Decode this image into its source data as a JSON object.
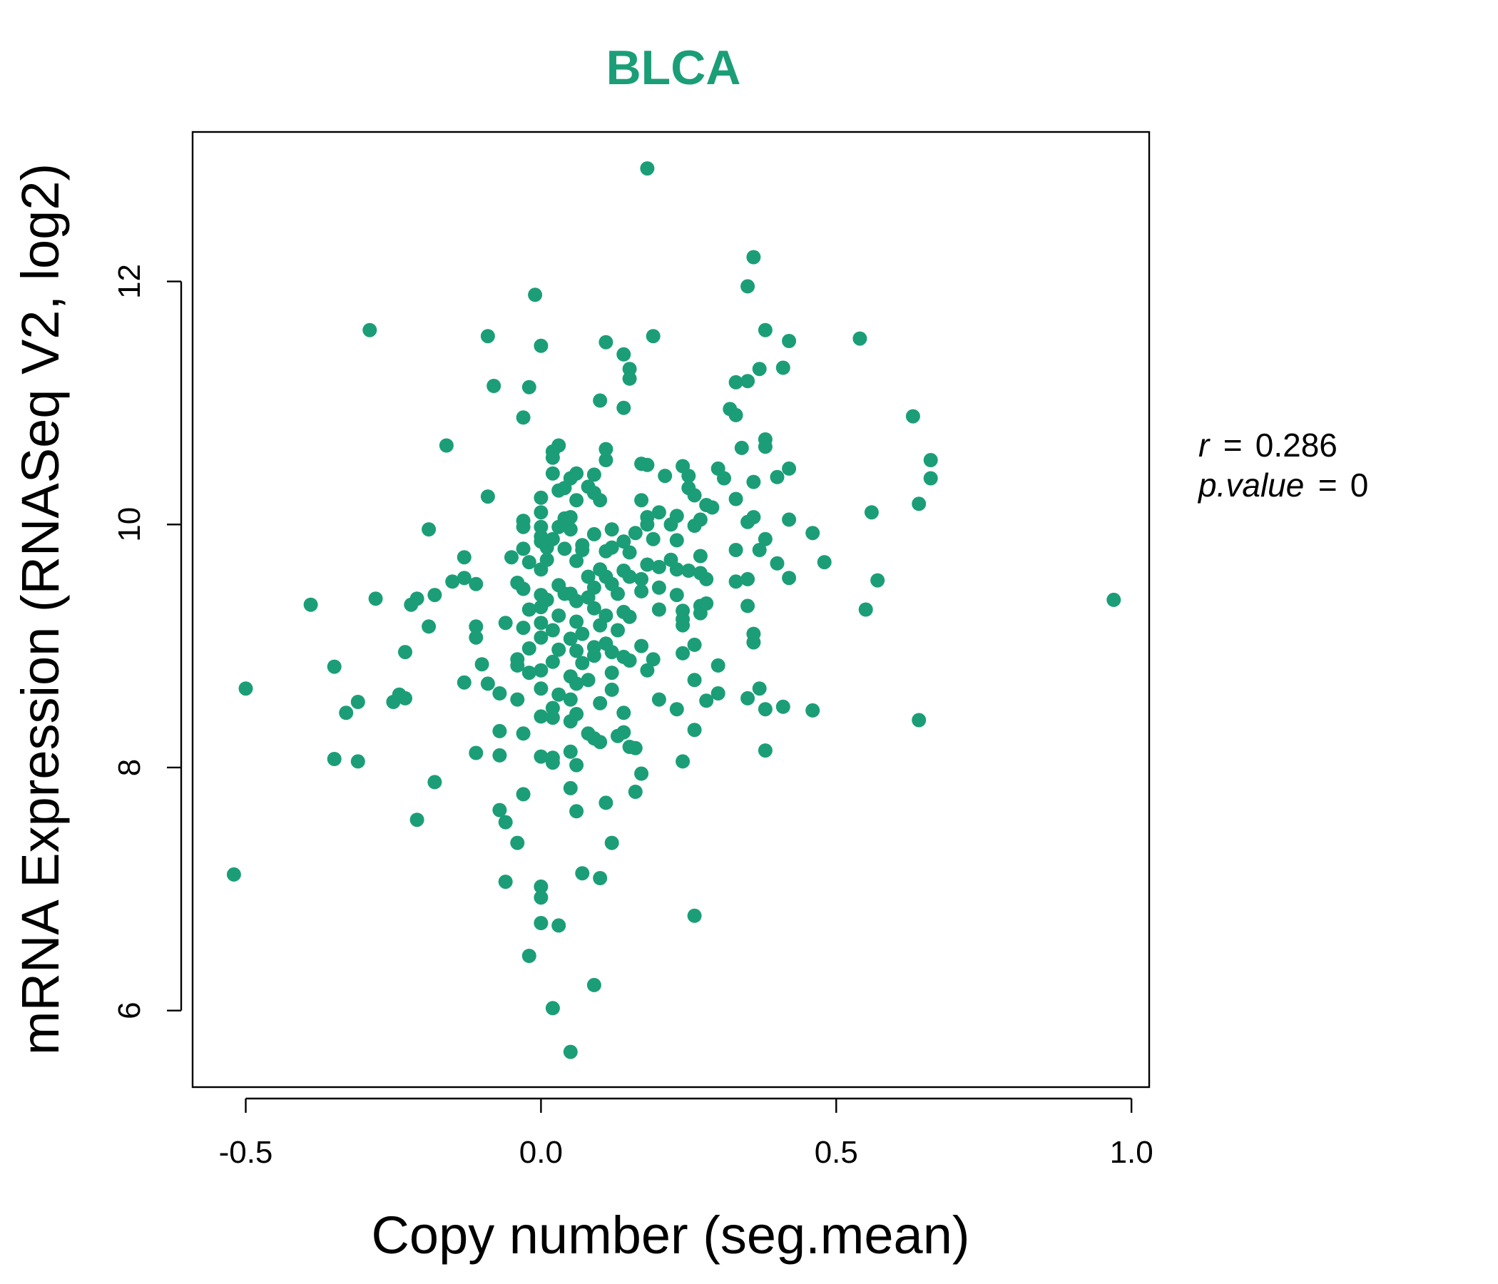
{
  "chart_data": {
    "type": "scatter",
    "title": "BLCA",
    "xlabel": "Copy number (seg.mean)",
    "ylabel": "mRNA Expression (RNASeq V2, log2)",
    "xlim": [
      -0.59,
      1.03
    ],
    "ylim": [
      5.37,
      13.23
    ],
    "x_ticks": [
      -0.5,
      0.0,
      0.5,
      1.0
    ],
    "x_tick_labels": [
      "-0.5",
      "0.0",
      "0.5",
      "1.0"
    ],
    "y_ticks": [
      6,
      8,
      10,
      12
    ],
    "y_tick_labels": [
      "6",
      "8",
      "10",
      "12"
    ],
    "grid": false,
    "legend": "none",
    "point_color": "#1b9e77",
    "stats": {
      "r_label": "r",
      "r_value": "0.286",
      "p_label": "p.value",
      "p_value": "0"
    },
    "series": [
      {
        "points": [
          [
            0.18,
            12.93
          ],
          [
            0.36,
            12.2
          ],
          [
            0.35,
            11.96
          ],
          [
            -0.01,
            11.89
          ],
          [
            -0.29,
            11.6
          ],
          [
            -0.09,
            11.55
          ],
          [
            0.19,
            11.55
          ],
          [
            0.11,
            11.5
          ],
          [
            0.54,
            11.53
          ],
          [
            0.38,
            11.6
          ],
          [
            0.42,
            11.51
          ],
          [
            0.0,
            11.47
          ],
          [
            0.14,
            11.4
          ],
          [
            0.15,
            11.28
          ],
          [
            0.15,
            11.2
          ],
          [
            0.37,
            11.28
          ],
          [
            0.41,
            11.29
          ],
          [
            0.33,
            11.17
          ],
          [
            0.35,
            11.18
          ],
          [
            -0.08,
            11.14
          ],
          [
            -0.02,
            11.13
          ],
          [
            0.1,
            11.02
          ],
          [
            0.14,
            10.96
          ],
          [
            0.32,
            10.95
          ],
          [
            0.33,
            10.9
          ],
          [
            -0.03,
            10.88
          ],
          [
            0.63,
            10.89
          ],
          [
            -0.16,
            10.65
          ],
          [
            0.03,
            10.65
          ],
          [
            0.02,
            10.6
          ],
          [
            0.11,
            10.62
          ],
          [
            0.34,
            10.63
          ],
          [
            0.38,
            10.7
          ],
          [
            0.38,
            10.64
          ],
          [
            0.02,
            10.55
          ],
          [
            0.11,
            10.53
          ],
          [
            0.17,
            10.5
          ],
          [
            0.18,
            10.49
          ],
          [
            0.24,
            10.48
          ],
          [
            0.42,
            10.46
          ],
          [
            0.66,
            10.53
          ],
          [
            0.3,
            10.46
          ],
          [
            0.02,
            10.42
          ],
          [
            0.06,
            10.42
          ],
          [
            0.09,
            10.41
          ],
          [
            0.21,
            10.4
          ],
          [
            0.25,
            10.4
          ],
          [
            0.31,
            10.38
          ],
          [
            0.05,
            10.38
          ],
          [
            0.4,
            10.39
          ],
          [
            0.66,
            10.38
          ],
          [
            0.08,
            10.31
          ],
          [
            0.09,
            10.26
          ],
          [
            0.04,
            10.3
          ],
          [
            0.25,
            10.3
          ],
          [
            0.36,
            10.35
          ],
          [
            0.03,
            10.28
          ],
          [
            0.0,
            10.22
          ],
          [
            0.1,
            10.2
          ],
          [
            0.17,
            10.2
          ],
          [
            0.26,
            10.24
          ],
          [
            0.33,
            10.21
          ],
          [
            0.64,
            10.17
          ],
          [
            -0.09,
            10.23
          ],
          [
            0.06,
            10.2
          ],
          [
            0.28,
            10.16
          ],
          [
            0.29,
            10.14
          ],
          [
            0.2,
            10.1
          ],
          [
            0.23,
            10.07
          ],
          [
            0.0,
            10.1
          ],
          [
            0.18,
            10.06
          ],
          [
            0.05,
            10.06
          ],
          [
            0.36,
            10.06
          ],
          [
            0.04,
            10.05
          ],
          [
            0.27,
            10.04
          ],
          [
            0.56,
            10.1
          ],
          [
            0.42,
            10.04
          ],
          [
            -0.03,
            10.03
          ],
          [
            0.35,
            10.02
          ],
          [
            0.22,
            10.0
          ],
          [
            0.18,
            10.0
          ],
          [
            0.0,
            9.98
          ],
          [
            0.03,
            9.98
          ],
          [
            -0.03,
            9.98
          ],
          [
            0.26,
            9.99
          ],
          [
            0.05,
            9.96
          ],
          [
            -0.19,
            9.96
          ],
          [
            0.12,
            9.96
          ],
          [
            0.16,
            9.93
          ],
          [
            0.09,
            9.92
          ],
          [
            0.46,
            9.93
          ],
          [
            0.0,
            9.9
          ],
          [
            0.19,
            9.88
          ],
          [
            0.02,
            9.88
          ],
          [
            0.23,
            9.87
          ],
          [
            0.38,
            9.88
          ],
          [
            0.0,
            9.86
          ],
          [
            0.07,
            9.83
          ],
          [
            0.14,
            9.86
          ],
          [
            0.12,
            9.81
          ],
          [
            0.01,
            9.81
          ],
          [
            0.07,
            9.79
          ],
          [
            -0.03,
            9.8
          ],
          [
            0.04,
            9.8
          ],
          [
            0.33,
            9.79
          ],
          [
            0.37,
            9.79
          ],
          [
            0.15,
            9.77
          ],
          [
            0.11,
            9.78
          ],
          [
            0.27,
            9.74
          ],
          [
            -0.13,
            9.73
          ],
          [
            -0.05,
            9.73
          ],
          [
            0.01,
            9.71
          ],
          [
            0.22,
            9.71
          ],
          [
            0.06,
            9.7
          ],
          [
            -0.02,
            9.69
          ],
          [
            0.4,
            9.68
          ],
          [
            0.48,
            9.69
          ],
          [
            0.18,
            9.67
          ],
          [
            0.2,
            9.65
          ],
          [
            0.23,
            9.63
          ],
          [
            0.1,
            9.63
          ],
          [
            0.0,
            9.63
          ],
          [
            0.14,
            9.62
          ],
          [
            0.25,
            9.62
          ],
          [
            0.27,
            9.6
          ],
          [
            0.08,
            9.57
          ],
          [
            0.11,
            9.57
          ],
          [
            0.15,
            9.57
          ],
          [
            0.17,
            9.55
          ],
          [
            0.28,
            9.55
          ],
          [
            0.35,
            9.55
          ],
          [
            0.42,
            9.56
          ],
          [
            0.57,
            9.54
          ],
          [
            0.33,
            9.53
          ],
          [
            -0.13,
            9.56
          ],
          [
            -0.15,
            9.53
          ],
          [
            -0.11,
            9.51
          ],
          [
            -0.04,
            9.52
          ],
          [
            0.12,
            9.51
          ],
          [
            0.03,
            9.5
          ],
          [
            0.09,
            9.48
          ],
          [
            0.2,
            9.48
          ],
          [
            -0.03,
            9.47
          ],
          [
            0.17,
            9.45
          ],
          [
            0.04,
            9.43
          ],
          [
            0.13,
            9.43
          ],
          [
            0.05,
            9.43
          ],
          [
            0.0,
            9.42
          ],
          [
            -0.18,
            9.42
          ],
          [
            0.23,
            9.42
          ],
          [
            0.97,
            9.38
          ],
          [
            0.08,
            9.4
          ],
          [
            -0.28,
            9.39
          ],
          [
            -0.21,
            9.39
          ],
          [
            0.01,
            9.38
          ],
          [
            0.06,
            9.37
          ],
          [
            0.28,
            9.35
          ],
          [
            -0.39,
            9.34
          ],
          [
            -0.22,
            9.34
          ],
          [
            0.27,
            9.33
          ],
          [
            0.35,
            9.33
          ],
          [
            0.55,
            9.3
          ],
          [
            0.0,
            9.32
          ],
          [
            0.09,
            9.31
          ],
          [
            0.2,
            9.3
          ],
          [
            0.24,
            9.29
          ],
          [
            -0.02,
            9.3
          ],
          [
            0.14,
            9.28
          ],
          [
            0.27,
            9.27
          ],
          [
            0.03,
            9.25
          ],
          [
            0.11,
            9.25
          ],
          [
            0.15,
            9.24
          ],
          [
            0.24,
            9.22
          ],
          [
            0.06,
            9.2
          ],
          [
            -0.06,
            9.19
          ],
          [
            0.0,
            9.19
          ],
          [
            0.1,
            9.17
          ],
          [
            0.24,
            9.17
          ],
          [
            -0.11,
            9.16
          ],
          [
            -0.19,
            9.16
          ],
          [
            -0.03,
            9.15
          ],
          [
            0.02,
            9.13
          ],
          [
            0.13,
            9.13
          ],
          [
            0.07,
            9.1
          ],
          [
            0.36,
            9.1
          ],
          [
            -0.11,
            9.07
          ],
          [
            0.0,
            9.07
          ],
          [
            0.05,
            9.06
          ],
          [
            0.11,
            9.02
          ],
          [
            0.26,
            9.01
          ],
          [
            0.17,
            9.0
          ],
          [
            0.36,
            9.03
          ],
          [
            0.09,
            8.99
          ],
          [
            -0.02,
            8.98
          ],
          [
            0.03,
            8.97
          ],
          [
            0.06,
            8.96
          ],
          [
            0.12,
            8.95
          ],
          [
            0.24,
            8.94
          ],
          [
            -0.23,
            8.95
          ],
          [
            0.09,
            8.92
          ],
          [
            0.14,
            8.91
          ],
          [
            -0.04,
            8.89
          ],
          [
            0.15,
            8.88
          ],
          [
            0.19,
            8.89
          ],
          [
            0.02,
            8.87
          ],
          [
            0.07,
            8.86
          ],
          [
            -0.1,
            8.85
          ],
          [
            0.3,
            8.84
          ],
          [
            -0.35,
            8.83
          ],
          [
            -0.04,
            8.84
          ],
          [
            0.18,
            8.8
          ],
          [
            0.0,
            8.8
          ],
          [
            -0.02,
            8.78
          ],
          [
            0.12,
            8.78
          ],
          [
            0.05,
            8.75
          ],
          [
            0.08,
            8.72
          ],
          [
            0.26,
            8.72
          ],
          [
            -0.13,
            8.7
          ],
          [
            -0.09,
            8.69
          ],
          [
            0.06,
            8.69
          ],
          [
            -0.5,
            8.65
          ],
          [
            0.0,
            8.65
          ],
          [
            0.12,
            8.64
          ],
          [
            0.37,
            8.65
          ],
          [
            0.3,
            8.61
          ],
          [
            -0.07,
            8.61
          ],
          [
            0.03,
            8.6
          ],
          [
            -0.24,
            8.6
          ],
          [
            0.35,
            8.57
          ],
          [
            -0.23,
            8.57
          ],
          [
            -0.04,
            8.56
          ],
          [
            0.05,
            8.56
          ],
          [
            0.2,
            8.56
          ],
          [
            0.28,
            8.55
          ],
          [
            -0.25,
            8.54
          ],
          [
            -0.31,
            8.54
          ],
          [
            0.1,
            8.53
          ],
          [
            0.41,
            8.5
          ],
          [
            0.02,
            8.49
          ],
          [
            0.38,
            8.48
          ],
          [
            0.46,
            8.47
          ],
          [
            0.23,
            8.48
          ],
          [
            -0.33,
            8.45
          ],
          [
            0.14,
            8.45
          ],
          [
            0.06,
            8.44
          ],
          [
            0.0,
            8.42
          ],
          [
            0.02,
            8.41
          ],
          [
            0.64,
            8.39
          ],
          [
            0.05,
            8.38
          ],
          [
            0.26,
            8.31
          ],
          [
            -0.07,
            8.3
          ],
          [
            0.14,
            8.29
          ],
          [
            0.08,
            8.28
          ],
          [
            -0.03,
            8.28
          ],
          [
            0.13,
            8.26
          ],
          [
            0.09,
            8.24
          ],
          [
            0.1,
            8.21
          ],
          [
            0.15,
            8.17
          ],
          [
            0.16,
            8.16
          ],
          [
            0.38,
            8.14
          ],
          [
            0.05,
            8.13
          ],
          [
            -0.11,
            8.12
          ],
          [
            -0.07,
            8.1
          ],
          [
            -0.35,
            8.07
          ],
          [
            0.0,
            8.09
          ],
          [
            0.02,
            8.08
          ],
          [
            -0.31,
            8.05
          ],
          [
            0.02,
            8.04
          ],
          [
            0.24,
            8.05
          ],
          [
            0.06,
            8.02
          ],
          [
            0.17,
            7.95
          ],
          [
            -0.18,
            7.88
          ],
          [
            0.05,
            7.83
          ],
          [
            0.16,
            7.8
          ],
          [
            -0.03,
            7.78
          ],
          [
            0.11,
            7.71
          ],
          [
            -0.07,
            7.65
          ],
          [
            0.06,
            7.64
          ],
          [
            -0.21,
            7.57
          ],
          [
            -0.06,
            7.55
          ],
          [
            -0.04,
            7.38
          ],
          [
            0.12,
            7.38
          ],
          [
            0.07,
            7.13
          ],
          [
            -0.52,
            7.12
          ],
          [
            0.1,
            7.09
          ],
          [
            -0.06,
            7.06
          ],
          [
            0.0,
            7.02
          ],
          [
            0.0,
            6.93
          ],
          [
            0.26,
            6.78
          ],
          [
            0.0,
            6.72
          ],
          [
            0.03,
            6.7
          ],
          [
            -0.02,
            6.45
          ],
          [
            0.09,
            6.21
          ],
          [
            0.02,
            6.02
          ],
          [
            0.05,
            5.66
          ]
        ]
      }
    ]
  }
}
